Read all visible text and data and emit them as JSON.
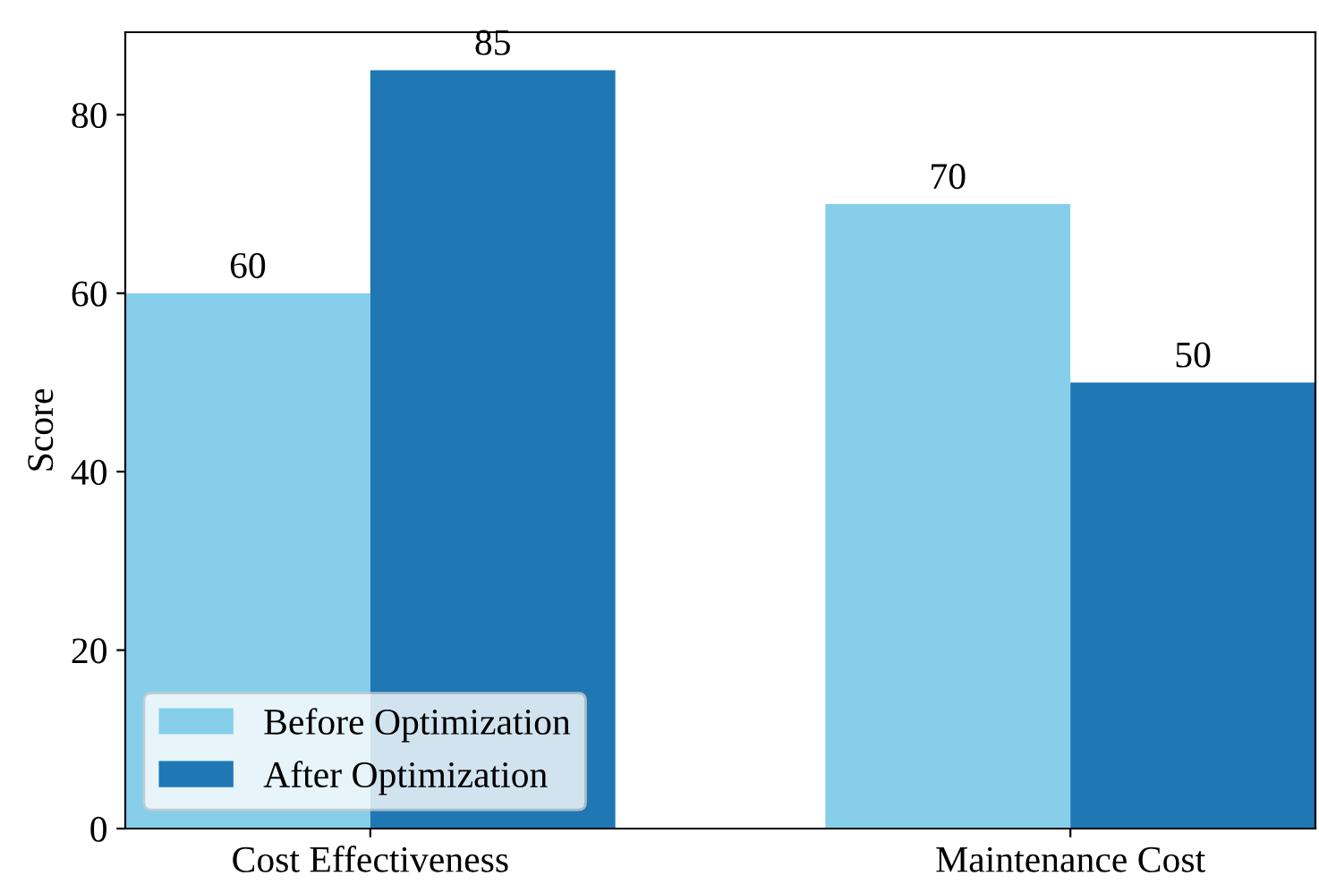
{
  "chart_data": {
    "type": "bar",
    "ylabel": "Score",
    "categories": [
      "Cost Effectiveness",
      "Maintenance Cost"
    ],
    "series": [
      {
        "name": "Before Optimization",
        "color": "#87ceeb",
        "values": [
          60,
          70
        ]
      },
      {
        "name": "After Optimization",
        "color": "#1f77b4",
        "values": [
          85,
          50
        ]
      }
    ],
    "ylim": [
      0,
      89.25
    ],
    "yticks": [
      0,
      20,
      40,
      60,
      80
    ],
    "data_labels": true,
    "legend": "bottom left",
    "grid": false
  }
}
